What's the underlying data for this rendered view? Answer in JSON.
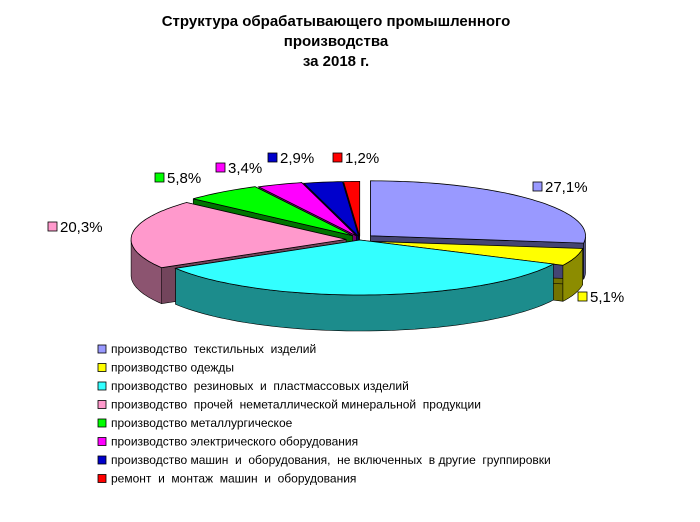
{
  "chart_data": {
    "type": "pie",
    "style": "3d-exploded",
    "title_lines": [
      "Структура обрабатывающего промышленного",
      "производства",
      "за 2018 г."
    ],
    "legend_position": "bottom-left",
    "slices": [
      {
        "name": "производство  текстильных  изделий",
        "value": 27.1,
        "label": "27,1%",
        "color": "#9999FF"
      },
      {
        "name": "производство одежды",
        "value": 5.1,
        "label": "5,1%",
        "color": "#FFFF00"
      },
      {
        "name": "производство  резиновых  и  пластмассовых изделий",
        "value": 34.2,
        "label": "",
        "color": "#33FFFF"
      },
      {
        "name": "производство  прочей  неметаллической минеральной  продукции",
        "value": 20.3,
        "label": "20,3%",
        "color": "#FF99CC"
      },
      {
        "name": "производство металлургическое",
        "value": 5.8,
        "label": "5,8%",
        "color": "#00FF00"
      },
      {
        "name": "производство электрического оборудования",
        "value": 3.4,
        "label": "3,4%",
        "color": "#FF00FF"
      },
      {
        "name": "производство машин  и  оборудования,  не включенных  в другие  группировки",
        "value": 2.9,
        "label": "2,9%",
        "color": "#0000CC"
      },
      {
        "name": "ремонт  и  монтаж  машин  и  оборудования",
        "value": 1.2,
        "label": "1,2%",
        "color": "#FF0000"
      }
    ]
  }
}
